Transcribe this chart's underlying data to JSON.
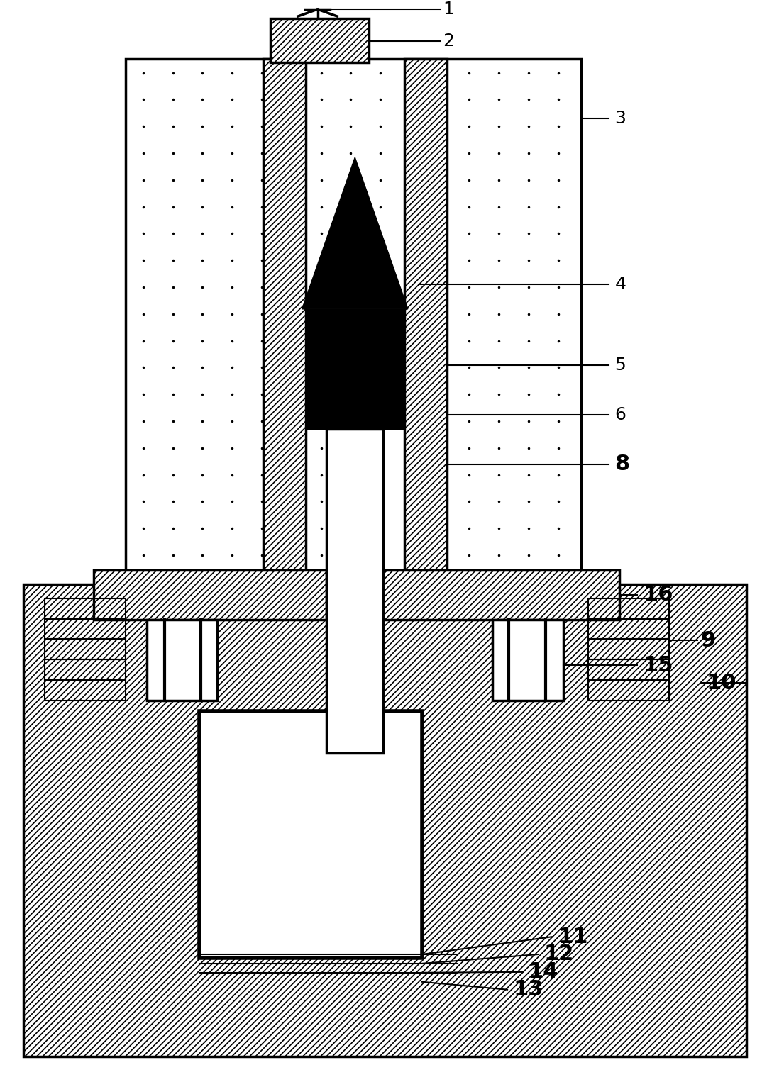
{
  "fig_width": 11.05,
  "fig_height": 15.26,
  "dpi": 100,
  "bg_color": "white",
  "label_fontsize": 18,
  "label_bold_fontsize": 22
}
